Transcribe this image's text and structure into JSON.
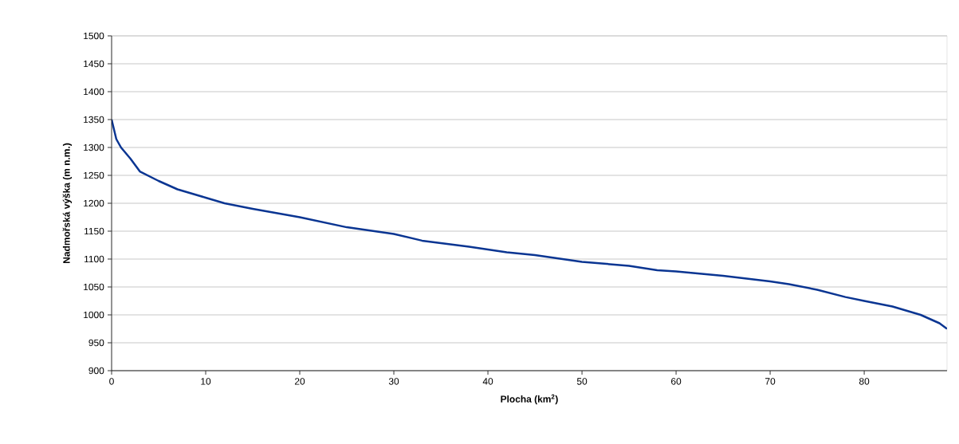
{
  "chart_data": {
    "type": "line",
    "xlabel": "Plocha (km$^{2}$)",
    "ylabel": "Nadmořská výška (m n.m.)",
    "x": [
      0,
      0.5,
      1,
      2,
      3,
      5,
      7,
      10,
      12,
      15,
      20,
      25,
      30,
      33,
      38,
      42,
      45,
      50,
      55,
      58,
      60,
      65,
      70,
      72,
      75,
      78,
      80,
      83,
      86,
      88,
      88.8
    ],
    "series": [
      {
        "color": "#0a3592",
        "values": [
          1350,
          1315,
          1300,
          1280,
          1257,
          1240,
          1225,
          1210,
          1200,
          1190,
          1175,
          1157,
          1145,
          1133,
          1122,
          1112,
          1107,
          1095,
          1088,
          1080,
          1078,
          1070,
          1060,
          1055,
          1045,
          1032,
          1025,
          1015,
          1000,
          985,
          975
        ]
      }
    ],
    "xlim": [
      0,
      88.8
    ],
    "ylim": [
      900,
      1500
    ],
    "xticks": [
      0,
      10,
      20,
      30,
      40,
      50,
      60,
      70,
      80
    ],
    "yticks": [
      900,
      950,
      1000,
      1050,
      1100,
      1150,
      1200,
      1250,
      1300,
      1350,
      1400,
      1450,
      1500
    ],
    "grid": "y",
    "marker": "none",
    "line_style": "solid"
  }
}
